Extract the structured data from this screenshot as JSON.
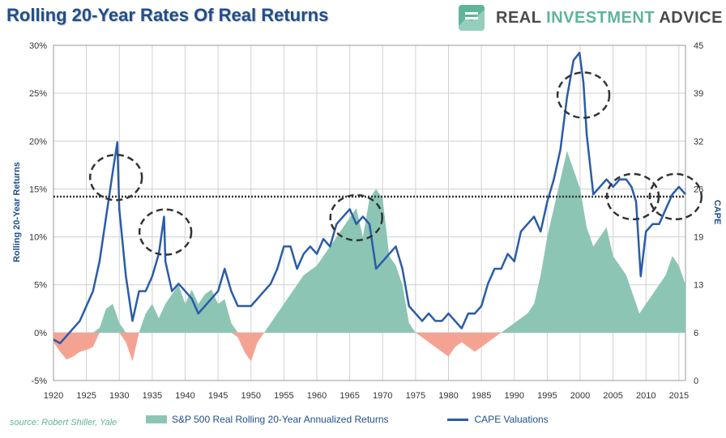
{
  "header": {
    "title": "Rolling 20-Year Rates Of Real Returns",
    "brand_part1": "REAL ",
    "brand_part2": "INVESTMENT",
    "brand_part3": " ADVICE"
  },
  "source": "source: Robert Shiller, Yale",
  "legend": {
    "area_label": "S&P 500 Real Rolling 20-Year Annualized Returns",
    "line_label": "CAPE Valuations"
  },
  "colors": {
    "positive_area": "#8cc5b4",
    "negative_area": "#f4a393",
    "cape_line": "#2a5ca8",
    "average_line": "#333333",
    "highlight_circle": "#333333"
  },
  "chart_data": {
    "type": "area",
    "title": "Rolling 20-Year Rates Of Real Returns",
    "left_axis": {
      "label": "Rolling 20-Year Returns",
      "ticks": [
        "-5%",
        "0%",
        "5%",
        "10%",
        "15%",
        "20%",
        "25%",
        "30%"
      ],
      "range": [
        -5,
        30
      ]
    },
    "right_axis": {
      "label": "CAPE",
      "ticks": [
        "0",
        "6",
        "13",
        "19",
        "26",
        "32",
        "39",
        "45"
      ],
      "range": [
        0,
        45
      ]
    },
    "x_axis": {
      "ticks": [
        "1920",
        "1925",
        "1930",
        "1935",
        "1940",
        "1945",
        "1950",
        "1955",
        "1960",
        "1965",
        "1970",
        "1975",
        "1980",
        "1985",
        "1990",
        "1995",
        "2000",
        "2005",
        "2010",
        "2015"
      ],
      "range": [
        1920,
        2016
      ]
    },
    "grid": true,
    "average_line_value_pct": 14.2,
    "series": [
      {
        "name": "S&P 500 Real Rolling 20-Year Annualized Returns",
        "axis": "left",
        "x": [
          1920,
          1921,
          1922,
          1923,
          1924,
          1925,
          1926,
          1927,
          1928,
          1929,
          1930,
          1931,
          1932,
          1933,
          1934,
          1935,
          1936,
          1937,
          1938,
          1939,
          1940,
          1941,
          1942,
          1943,
          1944,
          1945,
          1946,
          1947,
          1948,
          1949,
          1950,
          1951,
          1952,
          1953,
          1954,
          1955,
          1956,
          1957,
          1958,
          1959,
          1960,
          1961,
          1962,
          1963,
          1964,
          1965,
          1966,
          1967,
          1968,
          1969,
          1970,
          1971,
          1972,
          1973,
          1974,
          1975,
          1976,
          1977,
          1978,
          1979,
          1980,
          1981,
          1982,
          1983,
          1984,
          1985,
          1986,
          1987,
          1988,
          1989,
          1990,
          1991,
          1992,
          1993,
          1994,
          1995,
          1996,
          1997,
          1998,
          1999,
          2000,
          2001,
          2002,
          2003,
          2004,
          2005,
          2006,
          2007,
          2008,
          2009,
          2010,
          2011,
          2012,
          2013,
          2014,
          2015,
          2016
        ],
        "values": [
          -1,
          -2,
          -2.8,
          -2.5,
          -2,
          -1.8,
          -1.5,
          0.5,
          2.5,
          3,
          1,
          -1,
          -3,
          0,
          2,
          3,
          1.5,
          3,
          4,
          5,
          3,
          4.5,
          3,
          4,
          4.5,
          3,
          3.5,
          1,
          -0.5,
          -2,
          -3,
          -1,
          0,
          1,
          2,
          3,
          4,
          5,
          6,
          6.5,
          7,
          8,
          9,
          10,
          11,
          12,
          13,
          10,
          14,
          15,
          14,
          8,
          7,
          5,
          1,
          0,
          -0.5,
          -1,
          -1.5,
          -2,
          -2.5,
          -1.5,
          -1,
          -1.5,
          -2,
          -1.5,
          -1,
          -0.5,
          0,
          0.5,
          1,
          1.5,
          2,
          3,
          6,
          10,
          13,
          16,
          19,
          17,
          15,
          11,
          9,
          10,
          11,
          8,
          7,
          6,
          4,
          2,
          3,
          4,
          5,
          6,
          8,
          7,
          5
        ]
      },
      {
        "name": "CAPE Valuations",
        "axis": "right",
        "x": [
          1920,
          1921,
          1922,
          1923,
          1924,
          1925,
          1926,
          1927,
          1928,
          1929,
          1929.7,
          1930,
          1931,
          1932,
          1933,
          1934,
          1935,
          1936,
          1936.8,
          1937,
          1938,
          1939,
          1940,
          1941,
          1942,
          1943,
          1944,
          1945,
          1946,
          1947,
          1948,
          1949,
          1950,
          1951,
          1952,
          1953,
          1954,
          1955,
          1956,
          1957,
          1958,
          1959,
          1960,
          1961,
          1962,
          1963,
          1964,
          1965,
          1966,
          1967,
          1968,
          1969,
          1970,
          1971,
          1972,
          1973,
          1974,
          1975,
          1976,
          1977,
          1978,
          1979,
          1980,
          1981,
          1982,
          1983,
          1984,
          1985,
          1986,
          1987,
          1988,
          1989,
          1990,
          1991,
          1992,
          1993,
          1994,
          1995,
          1996,
          1997,
          1998,
          1999,
          1999.9,
          2000.5,
          2001,
          2002,
          2003,
          2004,
          2005,
          2006,
          2007,
          2007.8,
          2008.5,
          2009.2,
          2010,
          2011,
          2012,
          2013,
          2014,
          2015,
          2016
        ],
        "values": [
          5.5,
          5,
          6,
          7,
          8,
          10,
          12,
          16,
          22,
          28,
          32,
          23,
          14,
          8,
          12,
          12,
          14,
          17,
          22,
          16,
          12,
          13,
          12,
          11,
          9,
          10,
          11,
          12,
          15,
          12,
          10,
          10,
          10,
          11,
          12,
          13,
          15,
          18,
          18,
          15,
          17,
          18,
          17,
          19,
          18,
          21,
          22,
          23,
          21,
          22,
          21,
          15,
          16,
          17,
          18,
          15,
          10,
          9,
          8,
          9,
          8,
          8,
          9,
          8,
          7,
          9,
          9,
          10,
          13,
          15,
          15,
          17,
          16,
          20,
          21,
          22,
          20,
          24,
          27,
          31,
          38,
          43,
          44,
          40,
          33,
          25,
          26,
          27,
          26,
          27,
          27,
          26,
          24,
          14,
          20,
          21,
          21,
          23,
          25,
          26,
          25
        ]
      }
    ],
    "highlights": [
      {
        "year": 1929.5,
        "pct": 16.2
      },
      {
        "year": 1937,
        "pct": 10.5
      },
      {
        "year": 1966,
        "pct": 12.0
      },
      {
        "year": 2000.5,
        "pct": 24.8
      },
      {
        "year": 2008,
        "pct": 14.2
      },
      {
        "year": 2014.5,
        "pct": 14.2
      }
    ]
  }
}
